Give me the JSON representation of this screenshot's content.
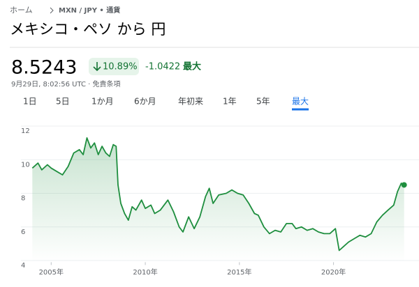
{
  "breadcrumb": [
    "ホーム",
    "MXN / JPY • 通貨"
  ],
  "title": "メキシコ・ペソ から 円",
  "price": "8.5243",
  "change_percent": "10.89%",
  "change": "-1.0422",
  "change_period": "最大",
  "timestamp": "9月29日, 8:02:56 UTC · 免責条項",
  "tabs": [
    "1日",
    "5日",
    "1か月",
    "6か月",
    "年初来",
    "1年",
    "5年",
    "最大"
  ],
  "chart_data": {
    "type": "line",
    "color": "#1e8e3e",
    "grid": true,
    "xlim": [
      2003.95,
      2023.8
    ],
    "ylim": [
      3.9,
      12.4
    ],
    "xticks": [
      {
        "value": 2005,
        "label": "2005年"
      },
      {
        "value": 2010,
        "label": "2010年"
      },
      {
        "value": 2015,
        "label": "2015年"
      },
      {
        "value": 2020,
        "label": "2020年"
      }
    ],
    "yticks": [
      4,
      6,
      8,
      10,
      12
    ],
    "x": [
      2004.0,
      2004.3,
      2004.5,
      2004.8,
      2005.0,
      2005.3,
      2005.6,
      2005.9,
      2006.2,
      2006.5,
      2006.7,
      2006.9,
      2007.1,
      2007.3,
      2007.5,
      2007.7,
      2007.9,
      2008.1,
      2008.3,
      2008.45,
      2008.55,
      2008.7,
      2008.9,
      2009.1,
      2009.3,
      2009.5,
      2009.8,
      2010.0,
      2010.3,
      2010.5,
      2010.8,
      2011.2,
      2011.5,
      2011.8,
      2012.0,
      2012.3,
      2012.6,
      2012.9,
      2013.2,
      2013.4,
      2013.6,
      2013.9,
      2014.3,
      2014.6,
      2014.9,
      2015.2,
      2015.5,
      2015.8,
      2016.0,
      2016.3,
      2016.6,
      2016.9,
      2017.2,
      2017.5,
      2017.8,
      2018.0,
      2018.3,
      2018.6,
      2018.9,
      2019.2,
      2019.5,
      2019.8,
      2020.1,
      2020.3,
      2020.5,
      2020.8,
      2021.1,
      2021.4,
      2021.7,
      2022.0,
      2022.3,
      2022.6,
      2022.9,
      2023.2,
      2023.4,
      2023.6,
      2023.75
    ],
    "series": [
      {
        "values": [
          9.5,
          9.8,
          9.4,
          9.7,
          9.5,
          9.3,
          9.1,
          9.6,
          10.4,
          10.6,
          10.3,
          11.3,
          10.7,
          11.0,
          10.3,
          10.8,
          10.4,
          10.2,
          10.9,
          10.8,
          8.5,
          7.4,
          6.8,
          6.4,
          7.2,
          7.0,
          7.6,
          7.1,
          7.3,
          6.8,
          7.0,
          7.6,
          6.9,
          6.0,
          5.7,
          6.6,
          5.9,
          6.6,
          7.8,
          8.3,
          7.4,
          7.9,
          8.0,
          8.2,
          8.0,
          7.9,
          7.4,
          6.8,
          6.7,
          6.0,
          5.6,
          5.8,
          5.7,
          6.2,
          6.2,
          5.9,
          6.0,
          5.8,
          5.9,
          5.7,
          5.6,
          5.6,
          5.9,
          4.6,
          4.8,
          5.1,
          5.3,
          5.5,
          5.4,
          5.6,
          6.3,
          6.7,
          7.0,
          7.3,
          8.1,
          8.6,
          8.5
        ]
      }
    ]
  }
}
